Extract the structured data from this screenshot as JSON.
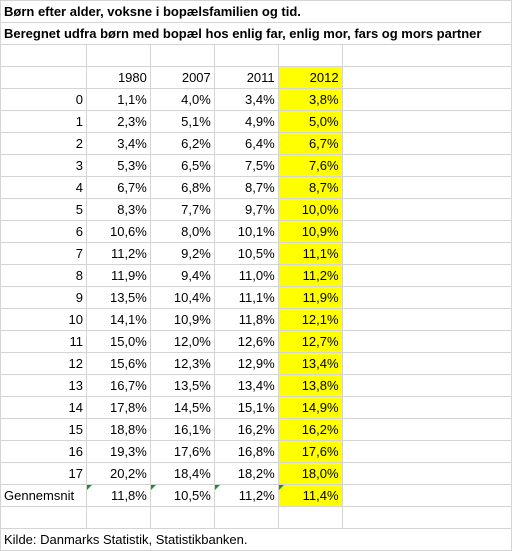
{
  "title": "Børn efter alder, voksne i bopælsfamilien og tid.",
  "subtitle": "Beregnet udfra børn med bopæl hos enlig far, enlig mor, fars og mors partner",
  "years": [
    "1980",
    "2007",
    "2011",
    "2012"
  ],
  "rows": [
    {
      "age": "0",
      "v1980": "1,1%",
      "v2007": "4,0%",
      "v2011": "3,4%",
      "v2012": "3,8%"
    },
    {
      "age": "1",
      "v1980": "2,3%",
      "v2007": "5,1%",
      "v2011": "4,9%",
      "v2012": "5,0%"
    },
    {
      "age": "2",
      "v1980": "3,4%",
      "v2007": "6,2%",
      "v2011": "6,4%",
      "v2012": "6,7%"
    },
    {
      "age": "3",
      "v1980": "5,3%",
      "v2007": "6,5%",
      "v2011": "7,5%",
      "v2012": "7,6%"
    },
    {
      "age": "4",
      "v1980": "6,7%",
      "v2007": "6,8%",
      "v2011": "8,7%",
      "v2012": "8,7%"
    },
    {
      "age": "5",
      "v1980": "8,3%",
      "v2007": "7,7%",
      "v2011": "9,7%",
      "v2012": "10,0%"
    },
    {
      "age": "6",
      "v1980": "10,6%",
      "v2007": "8,0%",
      "v2011": "10,1%",
      "v2012": "10,9%"
    },
    {
      "age": "7",
      "v1980": "11,2%",
      "v2007": "9,2%",
      "v2011": "10,5%",
      "v2012": "11,1%"
    },
    {
      "age": "8",
      "v1980": "11,9%",
      "v2007": "9,4%",
      "v2011": "11,0%",
      "v2012": "11,2%"
    },
    {
      "age": "9",
      "v1980": "13,5%",
      "v2007": "10,4%",
      "v2011": "11,1%",
      "v2012": "11,9%"
    },
    {
      "age": "10",
      "v1980": "14,1%",
      "v2007": "10,9%",
      "v2011": "11,8%",
      "v2012": "12,1%"
    },
    {
      "age": "11",
      "v1980": "15,0%",
      "v2007": "12,0%",
      "v2011": "12,6%",
      "v2012": "12,7%"
    },
    {
      "age": "12",
      "v1980": "15,6%",
      "v2007": "12,3%",
      "v2011": "12,9%",
      "v2012": "13,4%"
    },
    {
      "age": "13",
      "v1980": "16,7%",
      "v2007": "13,5%",
      "v2011": "13,4%",
      "v2012": "13,8%"
    },
    {
      "age": "14",
      "v1980": "17,8%",
      "v2007": "14,5%",
      "v2011": "15,1%",
      "v2012": "14,9%"
    },
    {
      "age": "15",
      "v1980": "18,8%",
      "v2007": "16,1%",
      "v2011": "16,2%",
      "v2012": "16,2%"
    },
    {
      "age": "16",
      "v1980": "19,3%",
      "v2007": "17,6%",
      "v2011": "16,8%",
      "v2012": "17,6%"
    },
    {
      "age": "17",
      "v1980": "20,2%",
      "v2007": "18,4%",
      "v2011": "18,2%",
      "v2012": "18,0%"
    }
  ],
  "average": {
    "label": "Gennemsnit",
    "v1980": "11,8%",
    "v2007": "10,5%",
    "v2011": "11,2%",
    "v2012": "11,4%"
  },
  "source": "Kilde: Danmarks Statistik, Statistikbanken.",
  "colors": {
    "highlight": "#ffff00",
    "gridline": "#d4d4d4",
    "error_flag": "#1e8c3a"
  }
}
